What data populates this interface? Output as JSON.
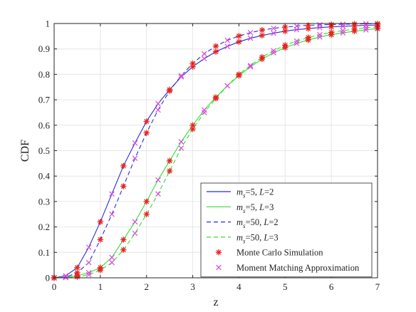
{
  "chart_data": {
    "type": "line",
    "title": "",
    "xlabel": "z",
    "ylabel": "CDF",
    "xlim": [
      0,
      7
    ],
    "ylim": [
      0,
      1
    ],
    "xticks": [
      "0",
      "1",
      "2",
      "3",
      "4",
      "5",
      "6",
      "7"
    ],
    "yticks": [
      "0",
      "0.1",
      "0.2",
      "0.3",
      "0.4",
      "0.5",
      "0.6",
      "0.7",
      "0.8",
      "0.9",
      "1"
    ],
    "grid": true,
    "legend_position": "bottom-right",
    "legend": [
      {
        "sub": "s",
        "rest": "=5, ",
        "L": "L",
        "val": "=2"
      },
      {
        "sub": "s",
        "rest": "=5, ",
        "L": "L",
        "val": "=3"
      },
      {
        "sub": "s",
        "rest": "=50, ",
        "L": "L",
        "val": "=2"
      },
      {
        "sub": "s",
        "rest": "=50, ",
        "L": "L",
        "val": "=3"
      },
      {
        "text": "Monte Carlo Simulation"
      },
      {
        "text": "Moment Matching Approximation"
      }
    ],
    "colors": {
      "blue": "#2b2bd9",
      "green": "#33dd33",
      "mc_marker": "#e8231f",
      "mm_marker": "#d94ad9"
    },
    "x": [
      0,
      0.25,
      0.5,
      0.75,
      1.0,
      1.25,
      1.5,
      1.75,
      2.0,
      2.25,
      2.5,
      2.75,
      3.0,
      3.25,
      3.5,
      3.75,
      4.0,
      4.25,
      4.5,
      4.75,
      5.0,
      5.25,
      5.5,
      5.75,
      6.0,
      6.25,
      6.5,
      6.75,
      7.0
    ],
    "series": [
      {
        "line": "solid",
        "color": "blue",
        "values": [
          0,
          0.008,
          0.04,
          0.12,
          0.22,
          0.33,
          0.44,
          0.53,
          0.615,
          0.685,
          0.74,
          0.79,
          0.83,
          0.862,
          0.889,
          0.91,
          0.928,
          0.942,
          0.953,
          0.962,
          0.97,
          0.976,
          0.98,
          0.984,
          0.987,
          0.989,
          0.991,
          0.993,
          0.994
        ]
      },
      {
        "line": "solid",
        "color": "green",
        "values": [
          0,
          0.002,
          0.008,
          0.02,
          0.04,
          0.08,
          0.15,
          0.22,
          0.3,
          0.385,
          0.46,
          0.535,
          0.6,
          0.66,
          0.71,
          0.755,
          0.795,
          0.83,
          0.86,
          0.885,
          0.905,
          0.922,
          0.935,
          0.947,
          0.956,
          0.963,
          0.97,
          0.975,
          0.98
        ]
      },
      {
        "line": "dashed",
        "color": "blue",
        "values": [
          0,
          0.002,
          0.02,
          0.06,
          0.15,
          0.25,
          0.36,
          0.47,
          0.57,
          0.66,
          0.735,
          0.795,
          0.843,
          0.881,
          0.911,
          0.934,
          0.951,
          0.964,
          0.974,
          0.981,
          0.986,
          0.99,
          0.993,
          0.995,
          0.996,
          0.997,
          0.998,
          0.999,
          0.999
        ]
      },
      {
        "line": "dashed",
        "color": "green",
        "values": [
          0,
          0.001,
          0.004,
          0.012,
          0.03,
          0.06,
          0.11,
          0.175,
          0.25,
          0.33,
          0.42,
          0.51,
          0.585,
          0.65,
          0.705,
          0.755,
          0.8,
          0.835,
          0.868,
          0.893,
          0.915,
          0.931,
          0.945,
          0.956,
          0.965,
          0.972,
          0.978,
          0.983,
          0.987
        ]
      }
    ],
    "markers": {
      "monte_carlo_x": [
        0,
        0.5,
        1.0,
        1.5,
        2.0,
        2.5,
        3.0,
        3.5,
        4.0,
        4.5,
        5.0,
        5.5,
        6.0,
        6.5,
        7.0
      ],
      "moment_matching_x": [
        0,
        0.25,
        0.75,
        1.25,
        1.75,
        2.25,
        2.75,
        3.25,
        3.75,
        4.25,
        4.75,
        5.25,
        5.75,
        6.25,
        6.75,
        7.0
      ]
    }
  }
}
